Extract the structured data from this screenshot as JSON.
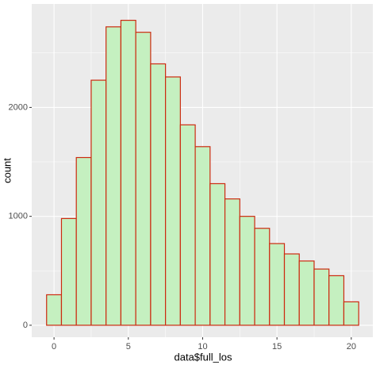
{
  "chart_data": {
    "type": "histogram",
    "x_label": "data$full_los",
    "y_label": "count",
    "bins": [
      -0.5,
      0.5,
      1.5,
      2.5,
      3.5,
      4.5,
      5.5,
      6.5,
      7.5,
      8.5,
      9.5,
      10.5,
      11.5,
      12.5,
      13.5,
      14.5,
      15.5,
      16.5,
      17.5,
      18.5,
      19.5,
      20.5
    ],
    "values": [
      280,
      980,
      1540,
      2250,
      2740,
      2800,
      2690,
      2400,
      2280,
      1840,
      1640,
      1300,
      1160,
      1000,
      890,
      750,
      655,
      590,
      516,
      455,
      215
    ],
    "color": "#c5f0c0",
    "edge_color": "#cc2b10",
    "xlim": [
      -1.5,
      21.45
    ],
    "ylim": [
      -110,
      2950
    ],
    "xticks": [
      0,
      5,
      10,
      15,
      20
    ],
    "yticks": [
      0,
      1000,
      2000
    ],
    "x_minor_ticks": [
      2.5,
      7.5,
      12.5,
      17.5
    ],
    "y_minor_ticks": [
      500,
      1500,
      2500
    ],
    "grid": true,
    "panel_color": "#ebebeb"
  }
}
